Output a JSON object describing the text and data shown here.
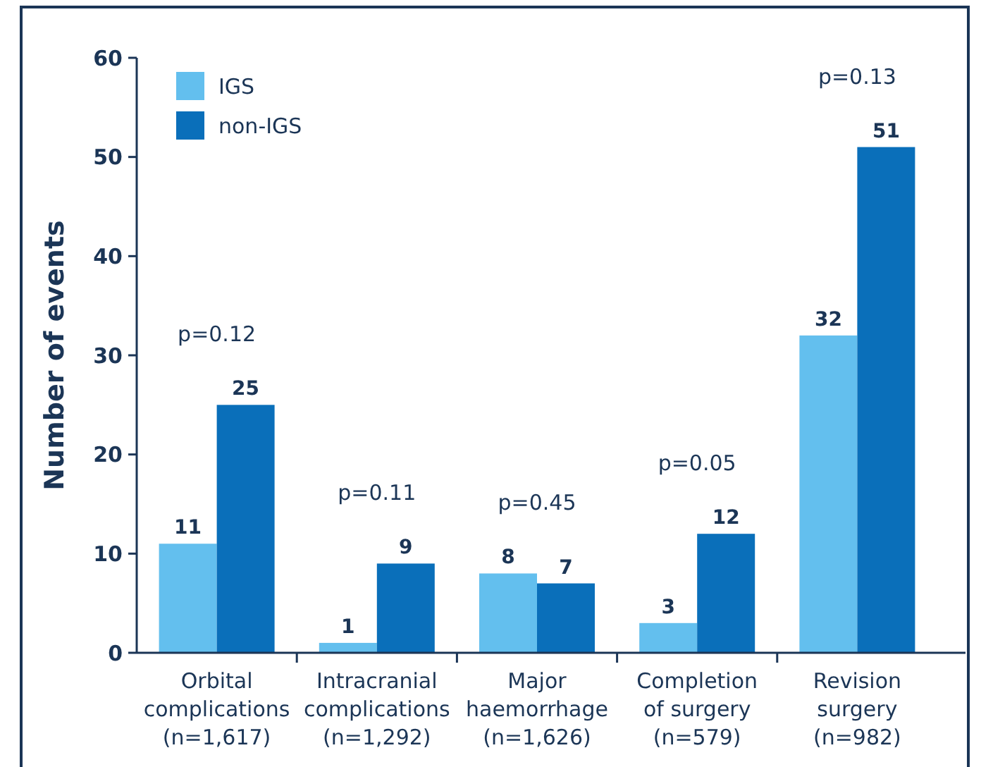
{
  "chart_data": {
    "type": "bar",
    "ylabel": "Number of events",
    "categories": [
      "Orbital\ncomplications\n(n=1,617)",
      "Intracranial\ncomplications\n(n=1,292)",
      "Major\nhaemorrhage\n(n=1,626)",
      "Completion\nof surgery\n(n=579)",
      "Revision\nsurgery\n(n=982)"
    ],
    "series": [
      {
        "name": "IGS",
        "color": "#63bfee",
        "values": [
          11,
          1,
          8,
          3,
          32
        ]
      },
      {
        "name": "non-IGS",
        "color": "#0a6fba",
        "values": [
          25,
          9,
          7,
          12,
          51
        ]
      }
    ],
    "ylim": [
      0,
      60
    ],
    "yticks": [
      0,
      10,
      20,
      30,
      40,
      50,
      60
    ],
    "grid": false,
    "legend": "top left",
    "data_labels": true,
    "annotations": [
      "p=0.12",
      "p=0.11",
      "p=0.45",
      "p=0.05",
      "p=0.13"
    ]
  }
}
